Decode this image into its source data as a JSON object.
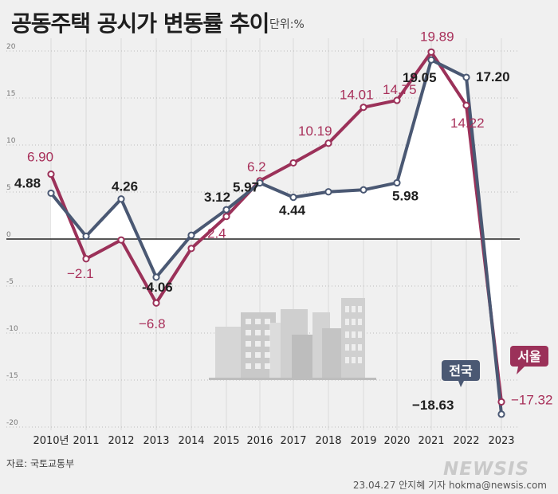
{
  "header": {
    "title": "공동주택 공시가 변동률 추이",
    "unit": "단위:%"
  },
  "footer": {
    "source": "자료: 국토교통부",
    "credit": "23.04.27 안지혜 기자 hokma@newsis.com",
    "logo": "NEWSIS"
  },
  "chart_data": {
    "type": "line",
    "title": "공동주택 공시가 변동률 추이",
    "unit": "단위:%",
    "ylim": [
      -20,
      20
    ],
    "yticks": [
      20,
      15,
      10,
      5,
      0,
      -5,
      -10,
      -15,
      -20
    ],
    "ytick_labels": [
      "20",
      "15",
      "10",
      "5",
      "0",
      "-5",
      "-10",
      "-15",
      "-20"
    ],
    "categories": [
      "2010년",
      "2011",
      "2012",
      "2013",
      "2014",
      "2015",
      "2016",
      "2017",
      "2018",
      "2019",
      "2020",
      "2021",
      "2022",
      "2023"
    ],
    "series": [
      {
        "name": "전국",
        "color": "#4a5873",
        "values": [
          4.88,
          0.3,
          4.26,
          -4.06,
          0.4,
          3.12,
          5.97,
          4.44,
          5.02,
          5.23,
          5.98,
          19.05,
          17.2,
          -18.63
        ],
        "labels": [
          "4.88",
          "",
          "4.26",
          "-4.06",
          "",
          "3.12",
          "5.97",
          "4.44",
          "",
          "",
          "5.98",
          "19.05",
          "17.20",
          "−18.63"
        ]
      },
      {
        "name": "서울",
        "color": "#9b3159",
        "values": [
          6.9,
          -2.1,
          -0.1,
          -6.8,
          -1.0,
          2.4,
          6.2,
          8.1,
          10.19,
          14.01,
          14.75,
          19.89,
          14.22,
          -17.32
        ],
        "labels": [
          "6.90",
          "−2.1",
          "",
          "−6.8",
          "",
          "2.4",
          "6.2",
          "",
          "10.19",
          "14.01",
          "14.75",
          "19.89",
          "14.22",
          "−17.32"
        ]
      }
    ]
  }
}
